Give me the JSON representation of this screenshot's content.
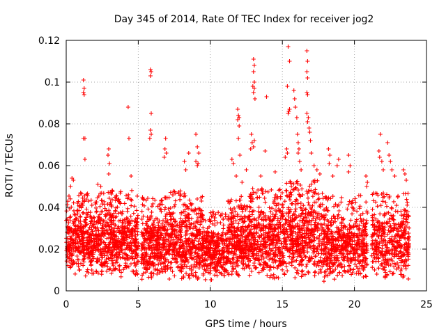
{
  "chart_data": {
    "type": "scatter",
    "title": "Day 345 of 2014, Rate Of TEC Index for receiver jog2",
    "xlabel": "GPS time / hours",
    "ylabel": "ROTI / TECUs",
    "xlim": [
      0,
      25
    ],
    "ylim": [
      0,
      0.12
    ],
    "xticks": [
      0,
      5,
      10,
      15,
      20,
      25
    ],
    "xtick_labels": [
      "0",
      "5",
      "10",
      "15",
      "20",
      "25"
    ],
    "yticks": [
      0,
      0.02,
      0.04,
      0.06,
      0.08,
      0.1,
      0.12
    ],
    "ytick_labels": [
      "0",
      "0.02",
      "0.04",
      "0.06",
      "0.08",
      "0.1",
      "0.12"
    ],
    "grid": true,
    "marker": "+",
    "series": [
      {
        "name": "ROTI",
        "color": "#ff0000",
        "clusters": [
          {
            "x_start": 0.0,
            "x_end": 0.8,
            "y_min": 0.007,
            "y_max": 0.046,
            "count": 150
          },
          {
            "x_start": 0.8,
            "x_end": 2.9,
            "y_min": 0.006,
            "y_max": 0.047,
            "count": 420
          },
          {
            "x_start": 2.9,
            "x_end": 5.0,
            "y_min": 0.005,
            "y_max": 0.049,
            "count": 420
          },
          {
            "x_start": 5.2,
            "x_end": 7.2,
            "y_min": 0.005,
            "y_max": 0.045,
            "count": 400
          },
          {
            "x_start": 7.2,
            "x_end": 9.5,
            "y_min": 0.004,
            "y_max": 0.048,
            "count": 440
          },
          {
            "x_start": 9.5,
            "x_end": 11.2,
            "y_min": 0.004,
            "y_max": 0.038,
            "count": 320
          },
          {
            "x_start": 11.2,
            "x_end": 12.7,
            "y_min": 0.006,
            "y_max": 0.046,
            "count": 320
          },
          {
            "x_start": 12.7,
            "x_end": 15.2,
            "y_min": 0.005,
            "y_max": 0.049,
            "count": 480
          },
          {
            "x_start": 15.2,
            "x_end": 17.8,
            "y_min": 0.005,
            "y_max": 0.053,
            "count": 500
          },
          {
            "x_start": 17.8,
            "x_end": 20.9,
            "y_min": 0.004,
            "y_max": 0.046,
            "count": 560
          },
          {
            "x_start": 21.2,
            "x_end": 23.8,
            "y_min": 0.005,
            "y_max": 0.047,
            "count": 440
          }
        ],
        "points": [
          {
            "x": 1.2,
            "y": 0.101
          },
          {
            "x": 1.25,
            "y": 0.097
          },
          {
            "x": 1.2,
            "y": 0.095
          },
          {
            "x": 1.25,
            "y": 0.094
          },
          {
            "x": 1.2,
            "y": 0.073
          },
          {
            "x": 1.3,
            "y": 0.073
          },
          {
            "x": 1.3,
            "y": 0.063
          },
          {
            "x": 0.4,
            "y": 0.054
          },
          {
            "x": 0.5,
            "y": 0.053
          },
          {
            "x": 0.3,
            "y": 0.05
          },
          {
            "x": 2.2,
            "y": 0.051
          },
          {
            "x": 2.4,
            "y": 0.05
          },
          {
            "x": 2.95,
            "y": 0.068
          },
          {
            "x": 2.9,
            "y": 0.065
          },
          {
            "x": 3.0,
            "y": 0.061
          },
          {
            "x": 2.95,
            "y": 0.056
          },
          {
            "x": 4.3,
            "y": 0.088
          },
          {
            "x": 4.35,
            "y": 0.073
          },
          {
            "x": 4.5,
            "y": 0.055
          },
          {
            "x": 5.85,
            "y": 0.106
          },
          {
            "x": 5.9,
            "y": 0.105
          },
          {
            "x": 5.85,
            "y": 0.103
          },
          {
            "x": 5.9,
            "y": 0.085
          },
          {
            "x": 5.85,
            "y": 0.077
          },
          {
            "x": 5.9,
            "y": 0.075
          },
          {
            "x": 5.8,
            "y": 0.073
          },
          {
            "x": 6.9,
            "y": 0.073
          },
          {
            "x": 6.85,
            "y": 0.068
          },
          {
            "x": 6.95,
            "y": 0.066
          },
          {
            "x": 6.8,
            "y": 0.064
          },
          {
            "x": 8.2,
            "y": 0.062
          },
          {
            "x": 8.3,
            "y": 0.058
          },
          {
            "x": 8.5,
            "y": 0.066
          },
          {
            "x": 9.0,
            "y": 0.075
          },
          {
            "x": 9.1,
            "y": 0.069
          },
          {
            "x": 9.2,
            "y": 0.066
          },
          {
            "x": 9.0,
            "y": 0.062
          },
          {
            "x": 9.15,
            "y": 0.061
          },
          {
            "x": 9.1,
            "y": 0.06
          },
          {
            "x": 11.5,
            "y": 0.063
          },
          {
            "x": 11.6,
            "y": 0.061
          },
          {
            "x": 11.9,
            "y": 0.087
          },
          {
            "x": 11.95,
            "y": 0.084
          },
          {
            "x": 12.0,
            "y": 0.083
          },
          {
            "x": 11.9,
            "y": 0.082
          },
          {
            "x": 12.0,
            "y": 0.079
          },
          {
            "x": 11.95,
            "y": 0.073
          },
          {
            "x": 12.05,
            "y": 0.065
          },
          {
            "x": 12.2,
            "y": 0.052
          },
          {
            "x": 11.8,
            "y": 0.055
          },
          {
            "x": 12.85,
            "y": 0.075
          },
          {
            "x": 12.9,
            "y": 0.071
          },
          {
            "x": 12.8,
            "y": 0.068
          },
          {
            "x": 12.5,
            "y": 0.058
          },
          {
            "x": 13.0,
            "y": 0.111
          },
          {
            "x": 13.05,
            "y": 0.108
          },
          {
            "x": 13.0,
            "y": 0.105
          },
          {
            "x": 13.05,
            "y": 0.1
          },
          {
            "x": 12.95,
            "y": 0.098
          },
          {
            "x": 13.05,
            "y": 0.097
          },
          {
            "x": 13.0,
            "y": 0.095
          },
          {
            "x": 13.1,
            "y": 0.092
          },
          {
            "x": 13.05,
            "y": 0.072
          },
          {
            "x": 13.0,
            "y": 0.069
          },
          {
            "x": 13.9,
            "y": 0.093
          },
          {
            "x": 13.8,
            "y": 0.067
          },
          {
            "x": 13.5,
            "y": 0.055
          },
          {
            "x": 14.5,
            "y": 0.057
          },
          {
            "x": 15.4,
            "y": 0.117
          },
          {
            "x": 15.5,
            "y": 0.11
          },
          {
            "x": 15.35,
            "y": 0.098
          },
          {
            "x": 15.5,
            "y": 0.087
          },
          {
            "x": 15.45,
            "y": 0.086
          },
          {
            "x": 15.4,
            "y": 0.085
          },
          {
            "x": 15.3,
            "y": 0.068
          },
          {
            "x": 15.35,
            "y": 0.066
          },
          {
            "x": 15.2,
            "y": 0.064
          },
          {
            "x": 15.8,
            "y": 0.096
          },
          {
            "x": 15.85,
            "y": 0.092
          },
          {
            "x": 15.9,
            "y": 0.088
          },
          {
            "x": 16.0,
            "y": 0.083
          },
          {
            "x": 16.05,
            "y": 0.075
          },
          {
            "x": 16.1,
            "y": 0.071
          },
          {
            "x": 16.15,
            "y": 0.068
          },
          {
            "x": 16.1,
            "y": 0.066
          },
          {
            "x": 16.2,
            "y": 0.062
          },
          {
            "x": 16.3,
            "y": 0.058
          },
          {
            "x": 16.7,
            "y": 0.115
          },
          {
            "x": 16.75,
            "y": 0.11
          },
          {
            "x": 16.7,
            "y": 0.105
          },
          {
            "x": 16.75,
            "y": 0.102
          },
          {
            "x": 16.7,
            "y": 0.095
          },
          {
            "x": 16.75,
            "y": 0.094
          },
          {
            "x": 16.7,
            "y": 0.085
          },
          {
            "x": 16.8,
            "y": 0.083
          },
          {
            "x": 16.75,
            "y": 0.081
          },
          {
            "x": 16.85,
            "y": 0.078
          },
          {
            "x": 16.9,
            "y": 0.076
          },
          {
            "x": 16.95,
            "y": 0.072
          },
          {
            "x": 17.0,
            "y": 0.066
          },
          {
            "x": 17.2,
            "y": 0.06
          },
          {
            "x": 17.4,
            "y": 0.058
          },
          {
            "x": 17.6,
            "y": 0.056
          },
          {
            "x": 18.2,
            "y": 0.068
          },
          {
            "x": 18.3,
            "y": 0.065
          },
          {
            "x": 18.25,
            "y": 0.061
          },
          {
            "x": 18.5,
            "y": 0.055
          },
          {
            "x": 18.8,
            "y": 0.06
          },
          {
            "x": 18.9,
            "y": 0.063
          },
          {
            "x": 19.6,
            "y": 0.065
          },
          {
            "x": 19.7,
            "y": 0.06
          },
          {
            "x": 19.6,
            "y": 0.057
          },
          {
            "x": 20.8,
            "y": 0.055
          },
          {
            "x": 20.9,
            "y": 0.052
          },
          {
            "x": 20.85,
            "y": 0.05
          },
          {
            "x": 21.8,
            "y": 0.075
          },
          {
            "x": 21.7,
            "y": 0.067
          },
          {
            "x": 21.75,
            "y": 0.064
          },
          {
            "x": 21.9,
            "y": 0.062
          },
          {
            "x": 22.0,
            "y": 0.058
          },
          {
            "x": 22.3,
            "y": 0.071
          },
          {
            "x": 22.4,
            "y": 0.065
          },
          {
            "x": 22.5,
            "y": 0.062
          },
          {
            "x": 22.6,
            "y": 0.058
          },
          {
            "x": 22.8,
            "y": 0.055
          },
          {
            "x": 23.4,
            "y": 0.058
          },
          {
            "x": 23.5,
            "y": 0.056
          },
          {
            "x": 23.6,
            "y": 0.053
          }
        ]
      }
    ]
  }
}
